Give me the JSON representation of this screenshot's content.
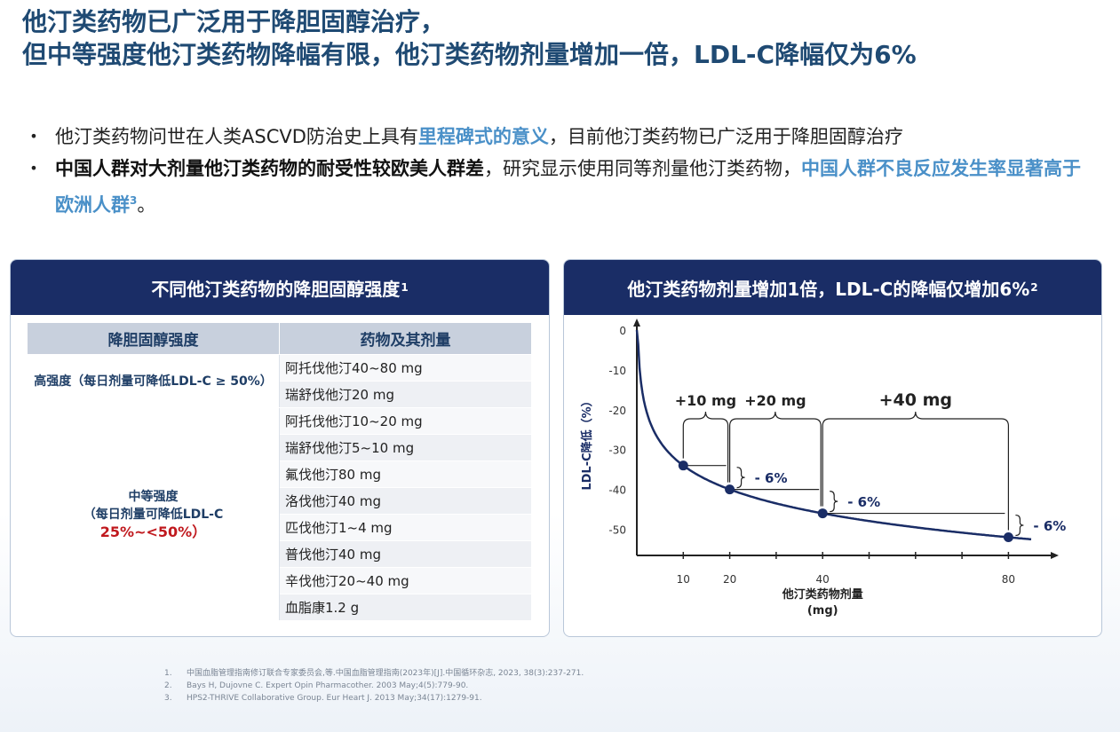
{
  "title": {
    "line1": "他汀类药物已广泛用于降胆固醇治疗，",
    "line2": "但中等强度他汀类药物降幅有限，他汀类药物剂量增加一倍，LDL-C降幅仅为6%"
  },
  "bullets": [
    {
      "p1": "他汀类药物问世在人类ASCVD防治史上具有",
      "hl": "里程碑式的意义",
      "p2": "，目前他汀类药物已广泛用于降胆固醇治疗"
    },
    {
      "b1": "中国人群对大剂量他汀类药物的耐受性较欧美人群差",
      "p1": "，研究显示使用同等剂量他汀类药物，",
      "hl": "中国人群不良反应发生率显著高于欧洲人群",
      "sup": "3",
      "p2": "。"
    }
  ],
  "left_panel": {
    "title": "不同他汀类药物的降胆固醇强度",
    "title_sup": "1",
    "headers": [
      "降胆固醇强度",
      "药物及其剂量"
    ],
    "high": {
      "label": "高强度（每日剂量可降低LDL-C ≥ 50%）",
      "drugs": [
        "阿托伐他汀40~80 mg",
        "瑞舒伐他汀20 mg"
      ]
    },
    "moderate": {
      "label1": "中等强度",
      "label2": "（每日剂量可降低LDL-C",
      "label3": "25%~<50%）",
      "drugs": [
        "阿托伐他汀10~20 mg",
        "瑞舒伐他汀5~10 mg",
        "氟伐他汀80 mg",
        "洛伐他汀40 mg",
        "匹伐他汀1~4 mg",
        "普伐他汀40 mg",
        "辛伐他汀20~40 mg",
        "血脂康1.2 g"
      ]
    }
  },
  "right_panel": {
    "title": "他汀类药物剂量增加1倍，LDL-C的降幅仅增加6%",
    "title_sup": "2"
  },
  "chart_data": {
    "type": "line",
    "xlabel": "他汀类药物剂量",
    "xlabel_unit": "(mg)",
    "ylabel": "LDL-C降低（%）",
    "x_ticks": [
      10,
      20,
      40,
      80
    ],
    "y_ticks": [
      0,
      -10,
      -20,
      -30,
      -40,
      -50
    ],
    "xlim": [
      0,
      90
    ],
    "ylim": [
      -57,
      0
    ],
    "points": [
      {
        "x": 10,
        "y": -34
      },
      {
        "x": 20,
        "y": -40
      },
      {
        "x": 40,
        "y": -46
      },
      {
        "x": 80,
        "y": -52
      }
    ],
    "increments": [
      "+10 mg",
      "+20 mg",
      "+40 mg"
    ],
    "drop_label": "- 6%"
  },
  "footnotes": [
    {
      "n": "1.",
      "text": "中国血脂管理指南修订联合专家委员会,等.中国血脂管理指南(2023年)[J].中国循环杂志, 2023, 38(3):237-271."
    },
    {
      "n": "2.",
      "text": "Bays H, Dujovne C. Expert Opin Pharmacother. 2003 May;4(5):779-90."
    },
    {
      "n": "3.",
      "text": "HPS2-THRIVE Collaborative Group. Eur Heart J. 2013 May;34(17):1279-91."
    }
  ],
  "colors": {
    "title": "#1f4a73",
    "highlight": "#4a90c8",
    "panel_header": "#1a2d66",
    "curve": "#1a2d66",
    "red": "#c0191e"
  }
}
